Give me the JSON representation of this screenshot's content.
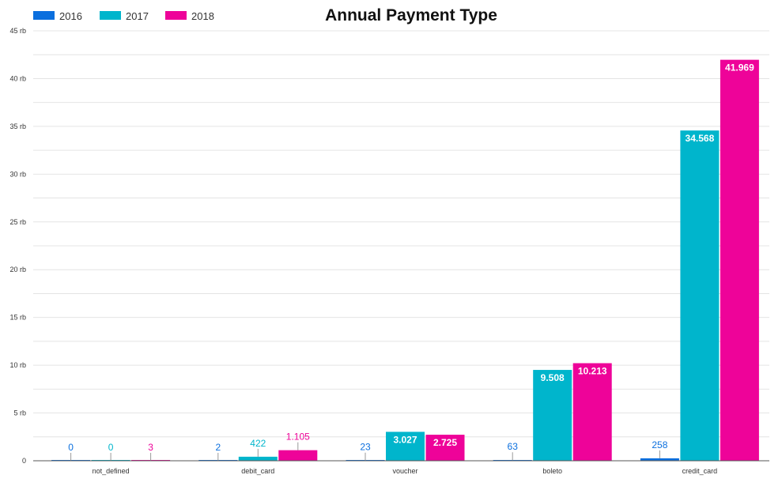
{
  "chart_data": {
    "type": "bar",
    "title": "Annual Payment Type",
    "xlabel": "",
    "ylabel": "",
    "categories": [
      "not_defined",
      "debit_card",
      "voucher",
      "boleto",
      "credit_card"
    ],
    "series": [
      {
        "name": "2016",
        "color": "#0b6fde",
        "values": [
          0,
          2,
          23,
          63,
          258
        ],
        "labels": [
          "0",
          "2",
          "23",
          "63",
          "258"
        ]
      },
      {
        "name": "2017",
        "color": "#00b5cc",
        "values": [
          0,
          422,
          3027,
          9508,
          34568
        ],
        "labels": [
          "0",
          "422",
          "3.027",
          "9.508",
          "34.568"
        ]
      },
      {
        "name": "2018",
        "color": "#ee0399",
        "values": [
          3,
          1105,
          2725,
          10213,
          41969
        ],
        "labels": [
          "3",
          "1.105",
          "2.725",
          "10.213",
          "41.969"
        ]
      }
    ],
    "ylim": [
      0,
      45000
    ],
    "yticks": [
      0,
      5000,
      10000,
      15000,
      20000,
      25000,
      30000,
      35000,
      40000,
      45000
    ],
    "ytick_labels": [
      "0",
      "5 rb",
      "10 rb",
      "15 rb",
      "20 rb",
      "25 rb",
      "30 rb",
      "35 rb",
      "40 rb",
      "45 rb"
    ],
    "grid": true,
    "legend_position": "top-left"
  }
}
